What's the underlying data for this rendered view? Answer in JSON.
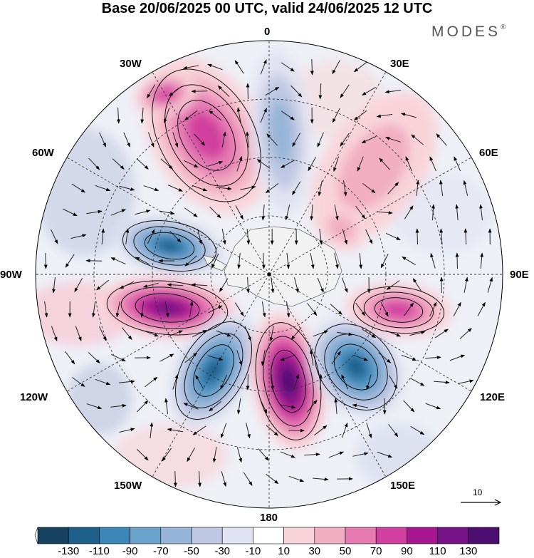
{
  "title": "Base 20/06/2025 00 UTC, valid 24/06/2025 12 UTC",
  "brand": {
    "name": "MODES",
    "mark": "®"
  },
  "longitude_labels": {
    "lon_0": "0",
    "lon_30e": "30E",
    "lon_60e": "60E",
    "lon_90e": "90E",
    "lon_120e": "120E",
    "lon_150e": "150E",
    "lon_180": "180",
    "lon_150w": "150W",
    "lon_120w": "120W",
    "lon_90w": "90W",
    "lon_60w": "60W",
    "lon_30w": "30W"
  },
  "reference_vector": {
    "value": "10"
  },
  "colorbar": {
    "ticks": [
      "-130",
      "-110",
      "-90",
      "-70",
      "-50",
      "-30",
      "-10",
      "10",
      "30",
      "50",
      "70",
      "90",
      "110",
      "130"
    ],
    "colors": [
      "#16425f",
      "#1e5f8a",
      "#3a86b8",
      "#6ba2cc",
      "#97b5d8",
      "#bfc8e3",
      "#e1e2f1",
      "#ffffff",
      "#f8d4da",
      "#f2aec3",
      "#e67bb3",
      "#d1409f",
      "#a5168f",
      "#761386",
      "#4d0e72"
    ]
  },
  "anomaly_centers": [
    {
      "lon": "30W",
      "sign": "positive",
      "level": "70"
    },
    {
      "lon": "5E",
      "sign": "negative",
      "level": "-50"
    },
    {
      "lon": "45E",
      "sign": "positive",
      "level": "30"
    },
    {
      "lon": "75W",
      "sign": "negative",
      "level": "-110"
    },
    {
      "lon": "105W",
      "sign": "positive",
      "level": "110"
    },
    {
      "lon": "150W",
      "sign": "negative",
      "level": "-110"
    },
    {
      "lon": "170E",
      "sign": "positive",
      "level": "130"
    },
    {
      "lon": "135E",
      "sign": "negative",
      "level": "-110"
    },
    {
      "lon": "100E",
      "sign": "positive",
      "level": "70"
    }
  ]
}
